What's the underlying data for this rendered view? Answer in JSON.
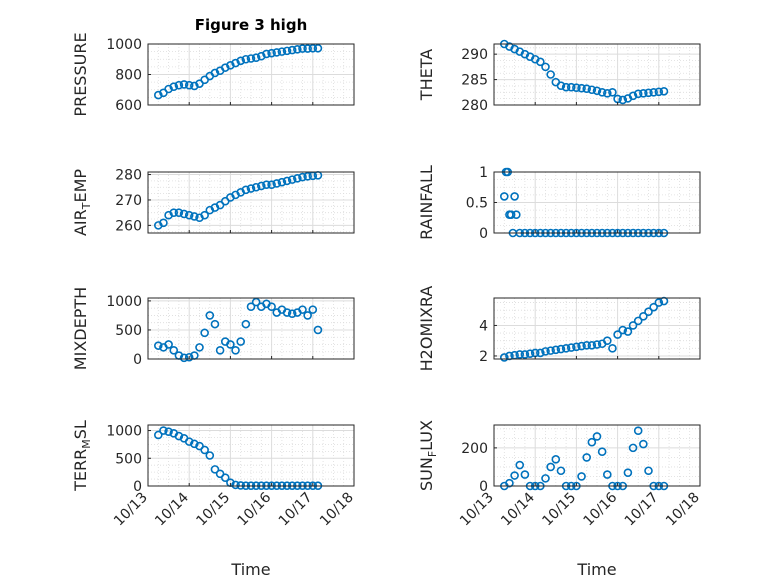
{
  "figure_title": "Figure 3 high",
  "colors": {
    "marker": "#0072BD",
    "axis": "#262626",
    "grid": "#dcdcdc"
  },
  "chart_data": [
    {
      "type": "scatter",
      "ylabel": "PRESSURE",
      "xlabel": "",
      "title": "Figure 3 high",
      "xlim": [
        "10/13",
        "10/18"
      ],
      "ylim": [
        600,
        1000
      ],
      "yticks": [
        "600",
        "800",
        "1000"
      ],
      "xticks": [],
      "grid": true,
      "points": [
        [
          "10/13 06:00",
          665
        ],
        [
          "10/13 09:00",
          680
        ],
        [
          "10/13 12:00",
          705
        ],
        [
          "10/13 15:00",
          720
        ],
        [
          "10/13 18:00",
          730
        ],
        [
          "10/13 21:00",
          735
        ],
        [
          "10/14 00:00",
          730
        ],
        [
          "10/14 03:00",
          725
        ],
        [
          "10/14 06:00",
          740
        ],
        [
          "10/14 09:00",
          765
        ],
        [
          "10/14 12:00",
          790
        ],
        [
          "10/14 15:00",
          810
        ],
        [
          "10/14 18:00",
          825
        ],
        [
          "10/14 21:00",
          845
        ],
        [
          "10/15 00:00",
          860
        ],
        [
          "10/15 03:00",
          875
        ],
        [
          "10/15 06:00",
          890
        ],
        [
          "10/15 09:00",
          900
        ],
        [
          "10/15 12:00",
          905
        ],
        [
          "10/15 15:00",
          910
        ],
        [
          "10/15 18:00",
          920
        ],
        [
          "10/15 21:00",
          935
        ],
        [
          "10/16 00:00",
          940
        ],
        [
          "10/16 03:00",
          945
        ],
        [
          "10/16 06:00",
          950
        ],
        [
          "10/16 09:00",
          955
        ],
        [
          "10/16 12:00",
          960
        ],
        [
          "10/16 15:00",
          965
        ],
        [
          "10/16 18:00",
          970
        ],
        [
          "10/16 21:00",
          970
        ],
        [
          "10/17 00:00",
          972
        ],
        [
          "10/17 03:00",
          972
        ]
      ]
    },
    {
      "type": "scatter",
      "ylabel": "THETA",
      "xlabel": "",
      "xlim": [
        "10/13",
        "10/18"
      ],
      "ylim": [
        280,
        292
      ],
      "yticks": [
        "280",
        "285",
        "290"
      ],
      "xticks": [],
      "grid": true,
      "points": [
        [
          "10/13 06:00",
          292
        ],
        [
          "10/13 09:00",
          291.5
        ],
        [
          "10/13 12:00",
          291
        ],
        [
          "10/13 15:00",
          290.5
        ],
        [
          "10/13 18:00",
          290
        ],
        [
          "10/13 21:00",
          289.5
        ],
        [
          "10/14 00:00",
          289
        ],
        [
          "10/14 03:00",
          288.5
        ],
        [
          "10/14 06:00",
          287.5
        ],
        [
          "10/14 09:00",
          286
        ],
        [
          "10/14 12:00",
          284.5
        ],
        [
          "10/14 15:00",
          283.8
        ],
        [
          "10/14 18:00",
          283.5
        ],
        [
          "10/14 21:00",
          283.5
        ],
        [
          "10/15 00:00",
          283.4
        ],
        [
          "10/15 03:00",
          283.3
        ],
        [
          "10/15 06:00",
          283.2
        ],
        [
          "10/15 09:00",
          283
        ],
        [
          "10/15 12:00",
          282.8
        ],
        [
          "10/15 15:00",
          282.5
        ],
        [
          "10/15 18:00",
          282.3
        ],
        [
          "10/15 21:00",
          282.5
        ],
        [
          "10/16 00:00",
          281.2
        ],
        [
          "10/16 03:00",
          281
        ],
        [
          "10/16 06:00",
          281.3
        ],
        [
          "10/16 09:00",
          281.8
        ],
        [
          "10/16 12:00",
          282.2
        ],
        [
          "10/16 15:00",
          282.3
        ],
        [
          "10/16 18:00",
          282.4
        ],
        [
          "10/16 21:00",
          282.5
        ],
        [
          "10/17 00:00",
          282.6
        ],
        [
          "10/17 03:00",
          282.7
        ]
      ]
    },
    {
      "type": "scatter",
      "ylabel": "AIR_TEMP",
      "xlabel": "",
      "xlim": [
        "10/13",
        "10/18"
      ],
      "ylim": [
        257,
        281
      ],
      "yticks": [
        "260",
        "270",
        "280"
      ],
      "xticks": [],
      "grid": true,
      "points": [
        [
          "10/13 06:00",
          260
        ],
        [
          "10/13 09:00",
          261
        ],
        [
          "10/13 12:00",
          264
        ],
        [
          "10/13 15:00",
          265
        ],
        [
          "10/13 18:00",
          265
        ],
        [
          "10/13 21:00",
          264.5
        ],
        [
          "10/14 00:00",
          264
        ],
        [
          "10/14 03:00",
          263.5
        ],
        [
          "10/14 06:00",
          263
        ],
        [
          "10/14 09:00",
          264
        ],
        [
          "10/14 12:00",
          266
        ],
        [
          "10/14 15:00",
          267
        ],
        [
          "10/14 18:00",
          268
        ],
        [
          "10/14 21:00",
          269.5
        ],
        [
          "10/15 00:00",
          271
        ],
        [
          "10/15 03:00",
          272
        ],
        [
          "10/15 06:00",
          273
        ],
        [
          "10/15 09:00",
          274
        ],
        [
          "10/15 12:00",
          274.5
        ],
        [
          "10/15 15:00",
          275
        ],
        [
          "10/15 18:00",
          275.5
        ],
        [
          "10/15 21:00",
          276
        ],
        [
          "10/16 00:00",
          276
        ],
        [
          "10/16 03:00",
          276.5
        ],
        [
          "10/16 06:00",
          277
        ],
        [
          "10/16 09:00",
          277.5
        ],
        [
          "10/16 12:00",
          278
        ],
        [
          "10/16 15:00",
          278.5
        ],
        [
          "10/16 18:00",
          279
        ],
        [
          "10/16 21:00",
          279.3
        ],
        [
          "10/17 00:00",
          279.5
        ],
        [
          "10/17 03:00",
          279.7
        ]
      ]
    },
    {
      "type": "scatter",
      "ylabel": "RAINFALL",
      "xlabel": "",
      "xlim": [
        "10/13",
        "10/18"
      ],
      "ylim": [
        0,
        1
      ],
      "yticks": [
        "0",
        "0.5",
        "1"
      ],
      "xticks": [],
      "grid": true,
      "points": [
        [
          "10/13 06:00",
          0.6
        ],
        [
          "10/13 07:00",
          1
        ],
        [
          "10/13 08:00",
          1
        ],
        [
          "10/13 09:00",
          0.3
        ],
        [
          "10/13 10:00",
          0.3
        ],
        [
          "10/13 11:00",
          0
        ],
        [
          "10/13 12:00",
          0.6
        ],
        [
          "10/13 13:00",
          0.3
        ],
        [
          "10/13 15:00",
          0
        ],
        [
          "10/13 18:00",
          0
        ],
        [
          "10/13 21:00",
          0
        ],
        [
          "10/14 00:00",
          0
        ],
        [
          "10/14 03:00",
          0
        ],
        [
          "10/14 06:00",
          0
        ],
        [
          "10/14 09:00",
          0
        ],
        [
          "10/14 12:00",
          0
        ],
        [
          "10/14 15:00",
          0
        ],
        [
          "10/14 18:00",
          0
        ],
        [
          "10/14 21:00",
          0
        ],
        [
          "10/15 00:00",
          0
        ],
        [
          "10/15 03:00",
          0
        ],
        [
          "10/15 06:00",
          0
        ],
        [
          "10/15 09:00",
          0
        ],
        [
          "10/15 12:00",
          0
        ],
        [
          "10/15 15:00",
          0
        ],
        [
          "10/15 18:00",
          0
        ],
        [
          "10/15 21:00",
          0
        ],
        [
          "10/16 00:00",
          0
        ],
        [
          "10/16 03:00",
          0
        ],
        [
          "10/16 06:00",
          0
        ],
        [
          "10/16 09:00",
          0
        ],
        [
          "10/16 12:00",
          0
        ],
        [
          "10/16 15:00",
          0
        ],
        [
          "10/16 18:00",
          0
        ],
        [
          "10/16 21:00",
          0
        ],
        [
          "10/17 00:00",
          0
        ],
        [
          "10/17 03:00",
          0
        ]
      ]
    },
    {
      "type": "scatter",
      "ylabel": "MIXDEPTH",
      "xlabel": "",
      "xlim": [
        "10/13",
        "10/18"
      ],
      "ylim": [
        0,
        1050
      ],
      "yticks": [
        "0",
        "500",
        "1000"
      ],
      "xticks": [],
      "grid": true,
      "points": [
        [
          "10/13 06:00",
          230
        ],
        [
          "10/13 09:00",
          200
        ],
        [
          "10/13 12:00",
          250
        ],
        [
          "10/13 15:00",
          150
        ],
        [
          "10/13 18:00",
          60
        ],
        [
          "10/13 21:00",
          20
        ],
        [
          "10/14 00:00",
          30
        ],
        [
          "10/14 03:00",
          60
        ],
        [
          "10/14 06:00",
          200
        ],
        [
          "10/14 09:00",
          450
        ],
        [
          "10/14 12:00",
          750
        ],
        [
          "10/14 15:00",
          600
        ],
        [
          "10/14 18:00",
          150
        ],
        [
          "10/14 21:00",
          300
        ],
        [
          "10/15 00:00",
          250
        ],
        [
          "10/15 03:00",
          150
        ],
        [
          "10/15 06:00",
          300
        ],
        [
          "10/15 09:00",
          600
        ],
        [
          "10/15 12:00",
          900
        ],
        [
          "10/15 15:00",
          980
        ],
        [
          "10/15 18:00",
          900
        ],
        [
          "10/15 21:00",
          950
        ],
        [
          "10/16 00:00",
          900
        ],
        [
          "10/16 03:00",
          800
        ],
        [
          "10/16 06:00",
          850
        ],
        [
          "10/16 09:00",
          800
        ],
        [
          "10/16 12:00",
          780
        ],
        [
          "10/16 15:00",
          800
        ],
        [
          "10/16 18:00",
          850
        ],
        [
          "10/16 21:00",
          750
        ],
        [
          "10/17 00:00",
          850
        ],
        [
          "10/17 03:00",
          500
        ]
      ]
    },
    {
      "type": "scatter",
      "ylabel": "H2OMIXRA",
      "xlabel": "",
      "xlim": [
        "10/13",
        "10/18"
      ],
      "ylim": [
        1.8,
        5.8
      ],
      "yticks": [
        "2",
        "4"
      ],
      "xticks": [],
      "grid": true,
      "points": [
        [
          "10/13 06:00",
          1.9
        ],
        [
          "10/13 09:00",
          2
        ],
        [
          "10/13 12:00",
          2.05
        ],
        [
          "10/13 15:00",
          2.1
        ],
        [
          "10/13 18:00",
          2.1
        ],
        [
          "10/13 21:00",
          2.15
        ],
        [
          "10/14 00:00",
          2.2
        ],
        [
          "10/14 03:00",
          2.2
        ],
        [
          "10/14 06:00",
          2.3
        ],
        [
          "10/14 09:00",
          2.35
        ],
        [
          "10/14 12:00",
          2.4
        ],
        [
          "10/14 15:00",
          2.45
        ],
        [
          "10/14 18:00",
          2.5
        ],
        [
          "10/14 21:00",
          2.55
        ],
        [
          "10/15 00:00",
          2.6
        ],
        [
          "10/15 03:00",
          2.65
        ],
        [
          "10/15 06:00",
          2.7
        ],
        [
          "10/15 09:00",
          2.7
        ],
        [
          "10/15 12:00",
          2.75
        ],
        [
          "10/15 15:00",
          2.8
        ],
        [
          "10/15 18:00",
          3
        ],
        [
          "10/15 21:00",
          2.5
        ],
        [
          "10/16 00:00",
          3.4
        ],
        [
          "10/16 03:00",
          3.7
        ],
        [
          "10/16 06:00",
          3.6
        ],
        [
          "10/16 09:00",
          4
        ],
        [
          "10/16 12:00",
          4.3
        ],
        [
          "10/16 15:00",
          4.6
        ],
        [
          "10/16 18:00",
          4.9
        ],
        [
          "10/16 21:00",
          5.2
        ],
        [
          "10/17 00:00",
          5.5
        ],
        [
          "10/17 03:00",
          5.6
        ]
      ]
    },
    {
      "type": "scatter",
      "ylabel": "TERR_MSL",
      "xlabel": "Time",
      "xlim": [
        "10/13",
        "10/18"
      ],
      "ylim": [
        0,
        1100
      ],
      "yticks": [
        "0",
        "500",
        "1000"
      ],
      "xticks": [
        "10/13",
        "10/14",
        "10/15",
        "10/16",
        "10/17",
        "10/18"
      ],
      "grid": true,
      "points": [
        [
          "10/13 06:00",
          920
        ],
        [
          "10/13 09:00",
          1000
        ],
        [
          "10/13 12:00",
          980
        ],
        [
          "10/13 15:00",
          950
        ],
        [
          "10/13 18:00",
          900
        ],
        [
          "10/13 21:00",
          860
        ],
        [
          "10/14 00:00",
          800
        ],
        [
          "10/14 03:00",
          760
        ],
        [
          "10/14 06:00",
          720
        ],
        [
          "10/14 09:00",
          650
        ],
        [
          "10/14 12:00",
          550
        ],
        [
          "10/14 15:00",
          300
        ],
        [
          "10/14 18:00",
          220
        ],
        [
          "10/14 21:00",
          150
        ],
        [
          "10/15 00:00",
          60
        ],
        [
          "10/15 03:00",
          20
        ],
        [
          "10/15 06:00",
          10
        ],
        [
          "10/15 09:00",
          5
        ],
        [
          "10/15 12:00",
          5
        ],
        [
          "10/15 15:00",
          5
        ],
        [
          "10/15 18:00",
          5
        ],
        [
          "10/15 21:00",
          5
        ],
        [
          "10/16 00:00",
          5
        ],
        [
          "10/16 03:00",
          5
        ],
        [
          "10/16 06:00",
          5
        ],
        [
          "10/16 09:00",
          5
        ],
        [
          "10/16 12:00",
          5
        ],
        [
          "10/16 15:00",
          5
        ],
        [
          "10/16 18:00",
          5
        ],
        [
          "10/16 21:00",
          5
        ],
        [
          "10/17 00:00",
          5
        ],
        [
          "10/17 03:00",
          5
        ]
      ]
    },
    {
      "type": "scatter",
      "ylabel": "SUN_FLUX",
      "xlabel": "Time",
      "xlim": [
        "10/13",
        "10/18"
      ],
      "ylim": [
        0,
        320
      ],
      "yticks": [
        "0",
        "200"
      ],
      "xticks": [
        "10/13",
        "10/14",
        "10/15",
        "10/16",
        "10/17",
        "10/18"
      ],
      "grid": true,
      "points": [
        [
          "10/13 06:00",
          0
        ],
        [
          "10/13 09:00",
          15
        ],
        [
          "10/13 12:00",
          55
        ],
        [
          "10/13 15:00",
          110
        ],
        [
          "10/13 18:00",
          60
        ],
        [
          "10/13 21:00",
          0
        ],
        [
          "10/14 00:00",
          0
        ],
        [
          "10/14 03:00",
          0
        ],
        [
          "10/14 06:00",
          40
        ],
        [
          "10/14 09:00",
          100
        ],
        [
          "10/14 12:00",
          140
        ],
        [
          "10/14 15:00",
          80
        ],
        [
          "10/14 18:00",
          0
        ],
        [
          "10/14 21:00",
          0
        ],
        [
          "10/15 00:00",
          0
        ],
        [
          "10/15 03:00",
          50
        ],
        [
          "10/15 06:00",
          150
        ],
        [
          "10/15 09:00",
          230
        ],
        [
          "10/15 12:00",
          260
        ],
        [
          "10/15 15:00",
          180
        ],
        [
          "10/15 18:00",
          60
        ],
        [
          "10/15 21:00",
          0
        ],
        [
          "10/16 00:00",
          0
        ],
        [
          "10/16 03:00",
          0
        ],
        [
          "10/16 06:00",
          70
        ],
        [
          "10/16 09:00",
          200
        ],
        [
          "10/16 12:00",
          290
        ],
        [
          "10/16 15:00",
          220
        ],
        [
          "10/16 18:00",
          80
        ],
        [
          "10/16 21:00",
          0
        ],
        [
          "10/17 00:00",
          0
        ],
        [
          "10/17 03:00",
          0
        ]
      ]
    }
  ]
}
